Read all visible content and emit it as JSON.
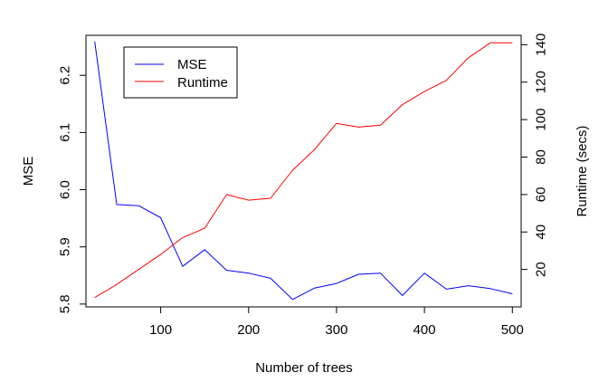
{
  "chart_data": {
    "type": "line",
    "x": [
      25,
      50,
      75,
      100,
      125,
      150,
      175,
      200,
      225,
      250,
      275,
      300,
      325,
      350,
      375,
      400,
      425,
      450,
      475,
      500
    ],
    "series": [
      {
        "name": "MSE",
        "axis": "left",
        "color": "#0000ff",
        "values": [
          6.259,
          5.974,
          5.972,
          5.951,
          5.866,
          5.895,
          5.859,
          5.854,
          5.845,
          5.808,
          5.828,
          5.836,
          5.852,
          5.854,
          5.815,
          5.854,
          5.826,
          5.832,
          5.827,
          5.818
        ]
      },
      {
        "name": "Runtime",
        "axis": "right",
        "color": "#ff0000",
        "values": [
          5,
          12,
          20,
          28,
          37,
          42,
          60,
          57,
          58,
          73,
          84,
          98,
          96,
          97,
          108,
          115,
          121,
          133,
          141,
          141
        ]
      }
    ],
    "xlabel": "Number of trees",
    "ylabel": "MSE",
    "y2label": "Runtime (secs)",
    "xlim": [
      15,
      510
    ],
    "ylim": [
      5.795,
      6.27
    ],
    "y2lim": [
      0,
      145
    ],
    "xticks": [
      100,
      200,
      300,
      400,
      500
    ],
    "yticks": [
      5.8,
      5.9,
      6.0,
      6.1,
      6.2
    ],
    "yticklabels": [
      "5.8",
      "5.9",
      "6.0",
      "6.1",
      "6.2"
    ],
    "y2ticks": [
      20,
      40,
      60,
      80,
      100,
      120,
      140
    ],
    "legend_position": "top-left",
    "grid": false
  }
}
